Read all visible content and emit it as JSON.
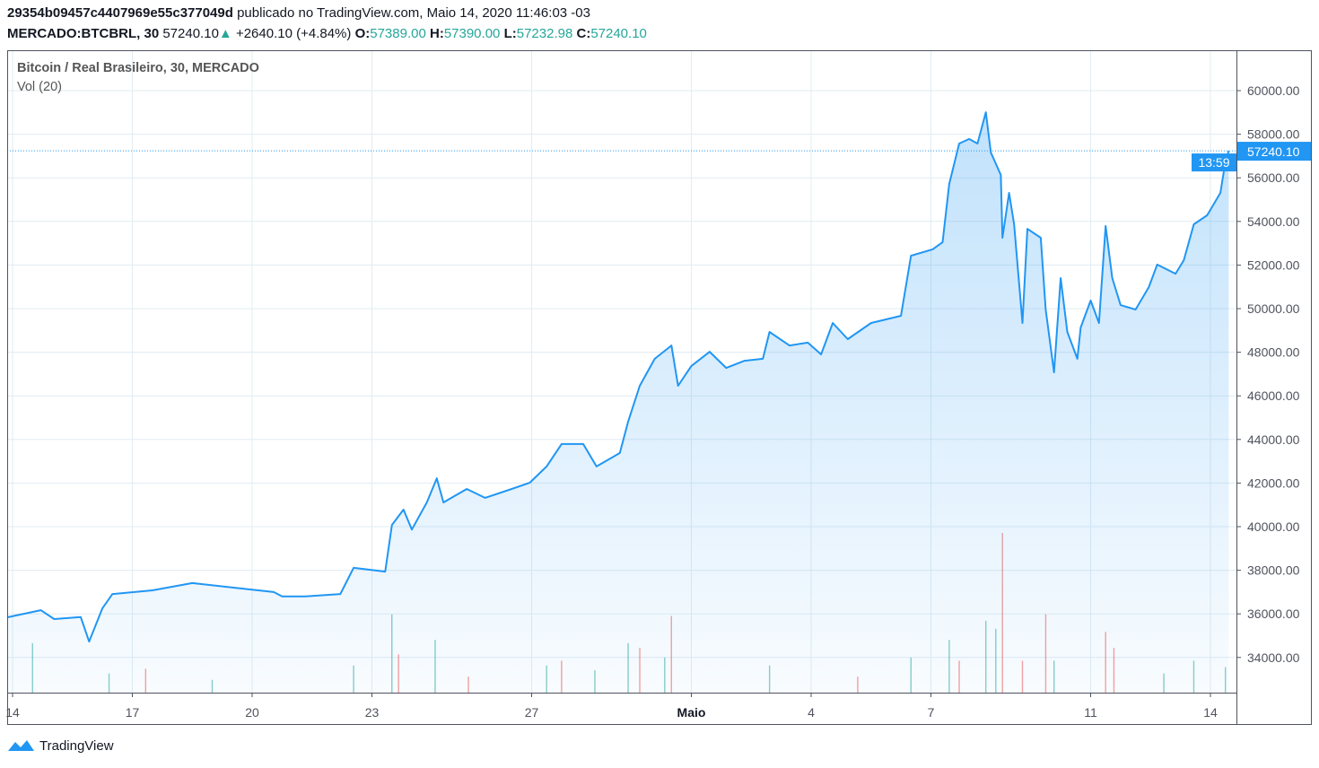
{
  "header": {
    "author": "29354b09457c4407969e55c377049d",
    "published": "publicado no TradingView.com, Maio 14, 2020 11:46:03 -03",
    "symbol": "MERCADO:BTCBRL, 30",
    "last": "57240.10",
    "change": "+2640.10 (+4.84%)",
    "o_label": "O:",
    "o": "57389.00",
    "h_label": "H:",
    "h": "57390.00",
    "l_label": "L:",
    "l": "57232.98",
    "c_label": "C:",
    "c": "57240.10"
  },
  "legend": {
    "title": "Bitcoin / Real Brasileiro, 30, MERCADO",
    "volume": "Vol (20)"
  },
  "footer": {
    "brand": "TradingView"
  },
  "colors": {
    "line": "#2196f3",
    "up": "#26a69a",
    "down": "#ef5350",
    "grid": "#e1ecf2"
  },
  "chart_data": {
    "type": "area",
    "title": "Bitcoin / Real Brasileiro, 30, MERCADO",
    "ylim": [
      32500,
      61500
    ],
    "yticks": [
      "34000.00",
      "36000.00",
      "38000.00",
      "40000.00",
      "42000.00",
      "44000.00",
      "46000.00",
      "48000.00",
      "50000.00",
      "52000.00",
      "54000.00",
      "56000.00",
      "58000.00",
      "60000.00"
    ],
    "xticks": [
      {
        "t": "2020-04-14T00:00",
        "label": "14"
      },
      {
        "t": "2020-04-17T00:00",
        "label": "17"
      },
      {
        "t": "2020-04-20T00:00",
        "label": "20"
      },
      {
        "t": "2020-04-23T00:00",
        "label": "23"
      },
      {
        "t": "2020-04-27T00:00",
        "label": "27"
      },
      {
        "t": "2020-05-01T00:00",
        "label": "Maio"
      },
      {
        "t": "2020-05-04T00:00",
        "label": "4"
      },
      {
        "t": "2020-05-07T00:00",
        "label": "7"
      },
      {
        "t": "2020-05-11T00:00",
        "label": "11"
      },
      {
        "t": "2020-05-14T00:00",
        "label": "14"
      }
    ],
    "last_price_label": "57240.10",
    "countdown_label": "13:59",
    "series": [
      {
        "points": [
          [
            "2020-04-13T21:00",
            35844
          ],
          [
            "2020-04-14T17:00",
            36170
          ],
          [
            "2020-04-15T01:00",
            35760
          ],
          [
            "2020-04-15T17:00",
            35850
          ],
          [
            "2020-04-15T22:00",
            34730
          ],
          [
            "2020-04-16T06:00",
            36250
          ],
          [
            "2020-04-16T12:00",
            36910
          ],
          [
            "2020-04-17T12:00",
            37080
          ],
          [
            "2020-04-18T12:00",
            37410
          ],
          [
            "2020-04-19T13:00",
            37200
          ],
          [
            "2020-04-20T13:00",
            37000
          ],
          [
            "2020-04-20T18:00",
            36800
          ],
          [
            "2020-04-21T08:00",
            36800
          ],
          [
            "2020-04-22T05:00",
            36910
          ],
          [
            "2020-04-22T13:00",
            38110
          ],
          [
            "2020-04-23T08:00",
            37940
          ],
          [
            "2020-04-23T12:00",
            40080
          ],
          [
            "2020-04-23T19:00",
            40780
          ],
          [
            "2020-04-24T00:00",
            39870
          ],
          [
            "2020-04-24T09:00",
            41110
          ],
          [
            "2020-04-24T15:00",
            42220
          ],
          [
            "2020-04-24T19:00",
            41110
          ],
          [
            "2020-04-25T09:00",
            41730
          ],
          [
            "2020-04-25T20:00",
            41320
          ],
          [
            "2020-04-26T12:00",
            41730
          ],
          [
            "2020-04-26T23:00",
            42020
          ],
          [
            "2020-04-27T09:00",
            42760
          ],
          [
            "2020-04-27T18:00",
            43790
          ],
          [
            "2020-04-28T07:00",
            43790
          ],
          [
            "2020-04-28T15:00",
            42760
          ],
          [
            "2020-04-29T05:00",
            43380
          ],
          [
            "2020-04-29T10:00",
            44810
          ],
          [
            "2020-04-29T17:00",
            46460
          ],
          [
            "2020-04-30T02:00",
            47700
          ],
          [
            "2020-04-30T12:00",
            48310
          ],
          [
            "2020-04-30T16:00",
            46460
          ],
          [
            "2020-05-01T00:00",
            47370
          ],
          [
            "2020-05-01T11:00",
            48020
          ],
          [
            "2020-05-01T21:00",
            47280
          ],
          [
            "2020-05-02T08:00",
            47610
          ],
          [
            "2020-05-02T19:00",
            47700
          ],
          [
            "2020-05-02T23:00",
            48930
          ],
          [
            "2020-05-03T11:00",
            48310
          ],
          [
            "2020-05-03T22:00",
            48440
          ],
          [
            "2020-05-04T06:00",
            47900
          ],
          [
            "2020-05-04T13:00",
            49340
          ],
          [
            "2020-05-04T22:00",
            48600
          ],
          [
            "2020-05-05T12:00",
            49340
          ],
          [
            "2020-05-06T06:00",
            49670
          ],
          [
            "2020-05-06T12:00",
            52430
          ],
          [
            "2020-05-07T01:00",
            52720
          ],
          [
            "2020-05-07T07:00",
            53050
          ],
          [
            "2020-05-07T11:00",
            55720
          ],
          [
            "2020-05-07T17:00",
            57570
          ],
          [
            "2020-05-07T23:00",
            57780
          ],
          [
            "2020-05-08T04:00",
            57570
          ],
          [
            "2020-05-08T09:00",
            59010
          ],
          [
            "2020-05-08T12:00",
            57160
          ],
          [
            "2020-05-08T18:00",
            56130
          ],
          [
            "2020-05-08T19:00",
            53250
          ],
          [
            "2020-05-08T23:00",
            55310
          ],
          [
            "2020-05-09T02:00",
            53870
          ],
          [
            "2020-05-09T07:00",
            49340
          ],
          [
            "2020-05-09T10:00",
            53660
          ],
          [
            "2020-05-09T18:00",
            53250
          ],
          [
            "2020-05-09T21:00",
            49960
          ],
          [
            "2020-05-10T02:00",
            47080
          ],
          [
            "2020-05-10T06:00",
            51400
          ],
          [
            "2020-05-10T10:00",
            48930
          ],
          [
            "2020-05-10T16:00",
            47700
          ],
          [
            "2020-05-10T18:00",
            49130
          ],
          [
            "2020-05-11T00:00",
            50370
          ],
          [
            "2020-05-11T05:00",
            49340
          ],
          [
            "2020-05-11T09:00",
            53790
          ],
          [
            "2020-05-11T13:00",
            51400
          ],
          [
            "2020-05-11T18:00",
            50160
          ],
          [
            "2020-05-12T03:00",
            49960
          ],
          [
            "2020-05-12T11:00",
            50990
          ],
          [
            "2020-05-12T16:00",
            52020
          ],
          [
            "2020-05-13T03:00",
            51600
          ],
          [
            "2020-05-13T08:00",
            52220
          ],
          [
            "2020-05-13T14:00",
            53870
          ],
          [
            "2020-05-13T22:00",
            54280
          ],
          [
            "2020-05-14T06:00",
            55310
          ],
          [
            "2020-05-14T09:00",
            56750
          ],
          [
            "2020-05-14T11:00",
            57240
          ]
        ]
      }
    ],
    "volume": [
      [
        "2020-04-14T12:00",
        31,
        "up"
      ],
      [
        "2020-04-16T10:00",
        12,
        "up"
      ],
      [
        "2020-04-17T08:00",
        15,
        "down"
      ],
      [
        "2020-04-19T00:00",
        8,
        "up"
      ],
      [
        "2020-04-22T13:00",
        17,
        "up"
      ],
      [
        "2020-04-23T12:00",
        49,
        "up"
      ],
      [
        "2020-04-23T16:00",
        24,
        "down"
      ],
      [
        "2020-04-24T14:00",
        33,
        "up"
      ],
      [
        "2020-04-25T10:00",
        10,
        "down"
      ],
      [
        "2020-04-27T09:00",
        17,
        "up"
      ],
      [
        "2020-04-27T18:00",
        20,
        "down"
      ],
      [
        "2020-04-28T14:00",
        14,
        "up"
      ],
      [
        "2020-04-29T10:00",
        31,
        "up"
      ],
      [
        "2020-04-29T17:00",
        28,
        "down"
      ],
      [
        "2020-04-30T12:00",
        48,
        "down"
      ],
      [
        "2020-04-30T08:00",
        22,
        "up"
      ],
      [
        "2020-05-02T23:00",
        17,
        "up"
      ],
      [
        "2020-05-05T04:00",
        10,
        "down"
      ],
      [
        "2020-05-06T12:00",
        22,
        "up"
      ],
      [
        "2020-05-07T11:00",
        33,
        "up"
      ],
      [
        "2020-05-07T17:00",
        20,
        "down"
      ],
      [
        "2020-05-08T09:00",
        45,
        "up"
      ],
      [
        "2020-05-08T19:00",
        100,
        "down"
      ],
      [
        "2020-05-08T15:00",
        40,
        "up"
      ],
      [
        "2020-05-09T07:00",
        20,
        "down"
      ],
      [
        "2020-05-09T21:00",
        49,
        "down"
      ],
      [
        "2020-05-10T02:00",
        20,
        "up"
      ],
      [
        "2020-05-11T09:00",
        38,
        "down"
      ],
      [
        "2020-05-11T14:00",
        28,
        "down"
      ],
      [
        "2020-05-12T20:00",
        12,
        "up"
      ],
      [
        "2020-05-13T14:00",
        20,
        "up"
      ],
      [
        "2020-05-14T09:00",
        16,
        "up"
      ]
    ]
  }
}
